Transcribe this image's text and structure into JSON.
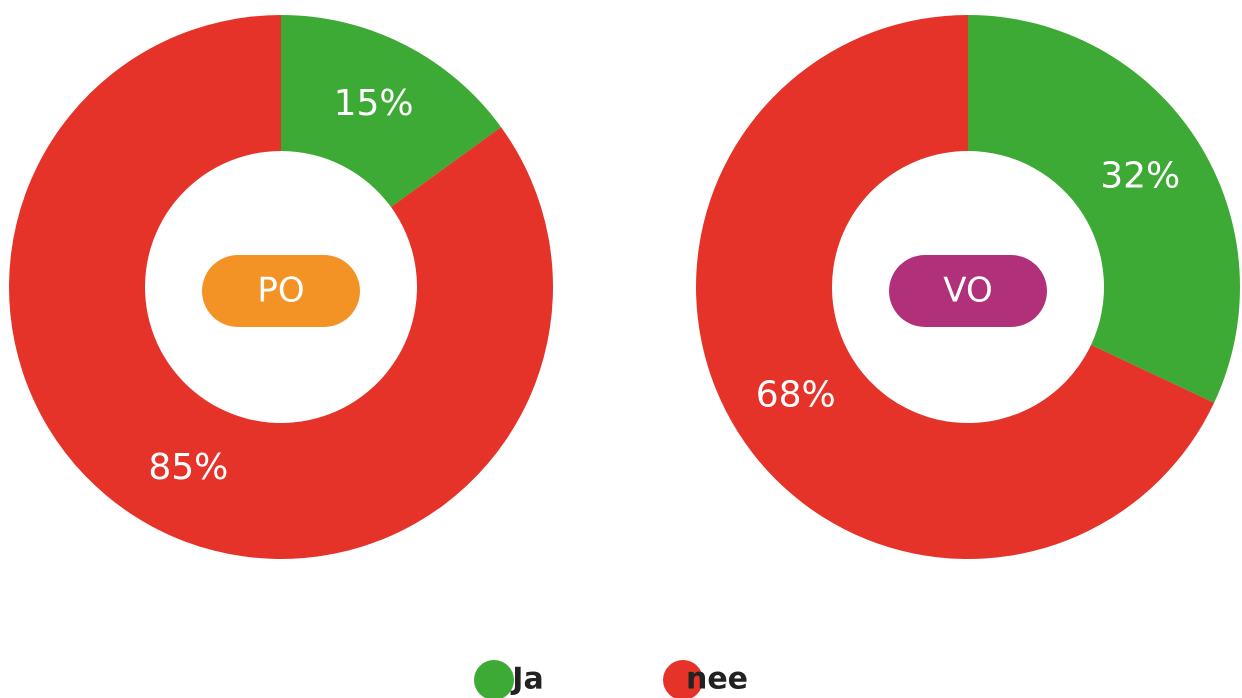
{
  "chart_data": [
    {
      "type": "pie",
      "donut": true,
      "center_label": "PO",
      "center_color": "#f39325",
      "categories": [
        "Ja",
        "nee"
      ],
      "values": [
        15,
        85
      ],
      "value_labels": [
        "15%",
        "85%"
      ],
      "colors": [
        "#3daa35",
        "#e5332a"
      ]
    },
    {
      "type": "pie",
      "donut": true,
      "center_label": "VO",
      "center_color": "#b0317a",
      "categories": [
        "Ja",
        "nee"
      ],
      "values": [
        32,
        68
      ],
      "value_labels": [
        "32%",
        "68%"
      ],
      "colors": [
        "#3daa35",
        "#e5332a"
      ]
    }
  ]
}
